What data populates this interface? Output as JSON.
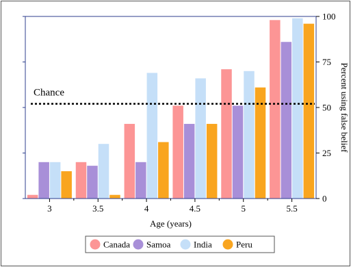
{
  "chart_data": {
    "type": "bar",
    "title": "",
    "xlabel": "Age (years)",
    "ylabel": "Percent using false belief",
    "categories": [
      "3",
      "3.5",
      "4",
      "4.5",
      "5",
      "5.5"
    ],
    "ylim": [
      0,
      100
    ],
    "yticks": [
      "0",
      "25",
      "50",
      "75",
      "100"
    ],
    "y_axis_side": "right",
    "grid": false,
    "legend_position": "bottom",
    "series": [
      {
        "name": "Canada",
        "color": "#fc9595",
        "values": [
          2,
          20,
          41,
          51,
          71,
          98
        ]
      },
      {
        "name": "Samoa",
        "color": "#a88fd8",
        "values": [
          20,
          18,
          20,
          41,
          51,
          86
        ]
      },
      {
        "name": "India",
        "color": "#c5dff8",
        "values": [
          20,
          30,
          69,
          66,
          70,
          99
        ]
      },
      {
        "name": "Peru",
        "color": "#f9a51f",
        "values": [
          15,
          2,
          31,
          41,
          61,
          96
        ]
      }
    ],
    "reference_line": {
      "value": 52,
      "label": "Chance",
      "style": "dotted"
    }
  }
}
